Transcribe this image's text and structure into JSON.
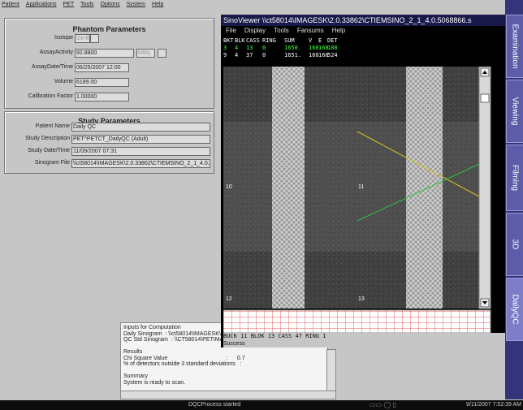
{
  "menu": [
    "Patient",
    "Applications",
    "PET",
    "Tools",
    "Options",
    "System",
    "Help"
  ],
  "phantom": {
    "title": "Phantom Parameters",
    "fields": [
      {
        "label": "Isotope",
        "value": "Ge-68"
      },
      {
        "label": "AssayActivity",
        "value": "92.8800",
        "unit": "MBq"
      },
      {
        "label": "AssayDate/Time",
        "value": "06/25/2007 12:00"
      },
      {
        "label": "Volume",
        "value": "6189.00"
      },
      {
        "label": "Calibration Factor",
        "value": "1.00000"
      }
    ]
  },
  "study": {
    "title": "Study Parameters",
    "fields": [
      {
        "label": "Patient Name",
        "value": "Daily QC"
      },
      {
        "label": "Study Description",
        "value": "PET^PETCT_DailyQC (Adult)"
      },
      {
        "label": "Study Date/Time",
        "value": "11/09/2007 07:31"
      },
      {
        "label": "Sinogram File",
        "value": "\\\\ct58014\\IMAGESK\\2.0.33862\\CTIEMSINO_2_1_4.0.5"
      }
    ]
  },
  "viewer": {
    "title": "SinoViewer \\\\ct58014\\IMAGESK\\2.0.33862\\CTIEMSINO_2_1_4.0.5068866.s",
    "menu": [
      "File",
      "Display",
      "Tools",
      "Fansums",
      "Help"
    ],
    "header": [
      "BKT",
      "BLK",
      "CASS",
      "RING",
      "SUM",
      "V",
      "E",
      "DET"
    ],
    "rows": [
      [
        "3",
        "4",
        "13",
        "0",
        "1650.",
        "160",
        "168",
        "188"
      ],
      [
        "9",
        "4",
        "37",
        "0",
        "1651.",
        "160",
        "160",
        "524"
      ]
    ],
    "quadrants": [
      "10",
      "11",
      "12",
      "13"
    ],
    "status": "BUCK 11 BLOK 13 CASS 47 RING 1",
    "result": "Success"
  },
  "log": [
    "Inputs for Computation",
    "Daily Sinogram  : \\\\ct58014\\IMAGESK\\2.0.33862\\C",
    "QC Std Sinogram  : \\\\CT58014\\PETIMAGES\\qcstd",
    "",
    "Results",
    "Chi Square Value                                     :      0.7",
    "% of detectors outside 3 standard deviations   :",
    "",
    "Summary",
    "System is ready to scan."
  ],
  "tabs": [
    "Examination",
    "Viewing",
    "Filming",
    "3D",
    "DailyQC"
  ],
  "statusbar": {
    "message": "DQCProcess started",
    "time": "9/11/2007 7:52:39 AM"
  }
}
